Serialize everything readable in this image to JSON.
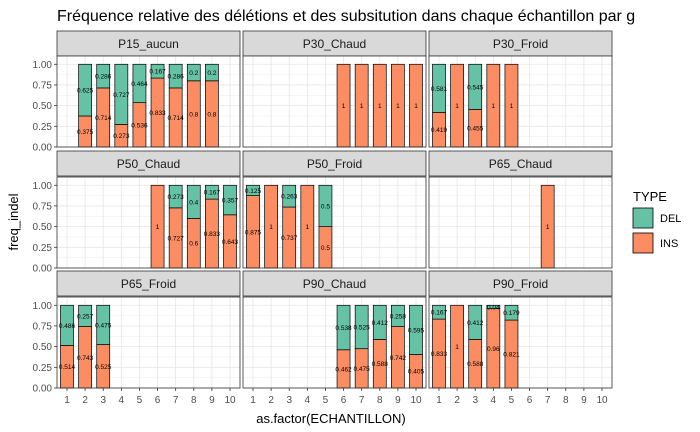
{
  "chart_data": {
    "type": "bar",
    "title": "Fréquence relative des délétions et des subsitution dans chaque échantillon par g",
    "xlabel": "as.factor(ECHANTILLON)",
    "ylabel": "freq_indel",
    "categories": [
      "1",
      "2",
      "3",
      "4",
      "5",
      "6",
      "7",
      "8",
      "9",
      "10"
    ],
    "yticks": [
      "0.00",
      "0.25",
      "0.50",
      "0.75",
      "1.00"
    ],
    "ylim": [
      0,
      1.1
    ],
    "stacked": true,
    "grid": true,
    "legend": {
      "title": "TYPE",
      "position": "right",
      "entries": [
        {
          "key": "DEL",
          "label": "DEL",
          "color": "#66c2a5"
        },
        {
          "key": "INS",
          "label": "INS",
          "color": "#fc8d62"
        }
      ]
    },
    "panels": [
      {
        "name": "P15_aucun",
        "bars": [
          {
            "x": "2",
            "INS": 0.375,
            "DEL": 0.625
          },
          {
            "x": "3",
            "INS": 0.714,
            "DEL": 0.286
          },
          {
            "x": "4",
            "INS": 0.273,
            "DEL": 0.727
          },
          {
            "x": "5",
            "INS": 0.536,
            "DEL": 0.464
          },
          {
            "x": "6",
            "INS": 0.833,
            "DEL": 0.167
          },
          {
            "x": "7",
            "INS": 0.714,
            "DEL": 0.286
          },
          {
            "x": "8",
            "INS": 0.8,
            "DEL": 0.2
          },
          {
            "x": "9",
            "INS": 0.8,
            "DEL": 0.2
          }
        ]
      },
      {
        "name": "P30_Chaud",
        "bars": [
          {
            "x": "6",
            "INS": 1,
            "DEL": 0
          },
          {
            "x": "7",
            "INS": 1,
            "DEL": 0
          },
          {
            "x": "8",
            "INS": 1,
            "DEL": 0
          },
          {
            "x": "9",
            "INS": 1,
            "DEL": 0
          },
          {
            "x": "10",
            "INS": 1,
            "DEL": 0
          }
        ]
      },
      {
        "name": "P30_Froid",
        "bars": [
          {
            "x": "1",
            "INS": 0.419,
            "DEL": 0.581
          },
          {
            "x": "2",
            "INS": 1,
            "DEL": 0
          },
          {
            "x": "3",
            "INS": 0.455,
            "DEL": 0.545
          },
          {
            "x": "4",
            "INS": 1,
            "DEL": 0
          },
          {
            "x": "5",
            "INS": 1,
            "DEL": 0
          }
        ]
      },
      {
        "name": "P50_Chaud",
        "bars": [
          {
            "x": "6",
            "INS": 1,
            "DEL": 0
          },
          {
            "x": "7",
            "INS": 0.727,
            "DEL": 0.273
          },
          {
            "x": "8",
            "INS": 0.6,
            "DEL": 0.4
          },
          {
            "x": "9",
            "INS": 0.833,
            "DEL": 0.167
          },
          {
            "x": "10",
            "INS": 0.643,
            "DEL": 0.357
          }
        ]
      },
      {
        "name": "P50_Froid",
        "bars": [
          {
            "x": "1",
            "INS": 0.875,
            "DEL": 0.125
          },
          {
            "x": "2",
            "INS": 1,
            "DEL": 0
          },
          {
            "x": "3",
            "INS": 0.737,
            "DEL": 0.263
          },
          {
            "x": "4",
            "INS": 1,
            "DEL": 0
          },
          {
            "x": "5",
            "INS": 0.5,
            "DEL": 0.5
          }
        ]
      },
      {
        "name": "P65_Chaud",
        "bars": [
          {
            "x": "7",
            "INS": 1,
            "DEL": 0
          }
        ]
      },
      {
        "name": "P65_Froid",
        "bars": [
          {
            "x": "1",
            "INS": 0.514,
            "DEL": 0.486
          },
          {
            "x": "2",
            "INS": 0.743,
            "DEL": 0.257
          },
          {
            "x": "3",
            "INS": 0.525,
            "DEL": 0.475
          }
        ]
      },
      {
        "name": "P90_Chaud",
        "bars": [
          {
            "x": "6",
            "INS": 0.462,
            "DEL": 0.538
          },
          {
            "x": "7",
            "INS": 0.475,
            "DEL": 0.525
          },
          {
            "x": "8",
            "INS": 0.588,
            "DEL": 0.412
          },
          {
            "x": "9",
            "INS": 0.742,
            "DEL": 0.258
          },
          {
            "x": "10",
            "INS": 0.405,
            "DEL": 0.595
          }
        ]
      },
      {
        "name": "P90_Froid",
        "bars": [
          {
            "x": "1",
            "INS": 0.833,
            "DEL": 0.167
          },
          {
            "x": "2",
            "INS": 1,
            "DEL": 0
          },
          {
            "x": "3",
            "INS": 0.588,
            "DEL": 0.412
          },
          {
            "x": "4",
            "INS": 0.96,
            "DEL": 0.04
          },
          {
            "x": "5",
            "INS": 0.821,
            "DEL": 0.179
          }
        ]
      }
    ]
  }
}
